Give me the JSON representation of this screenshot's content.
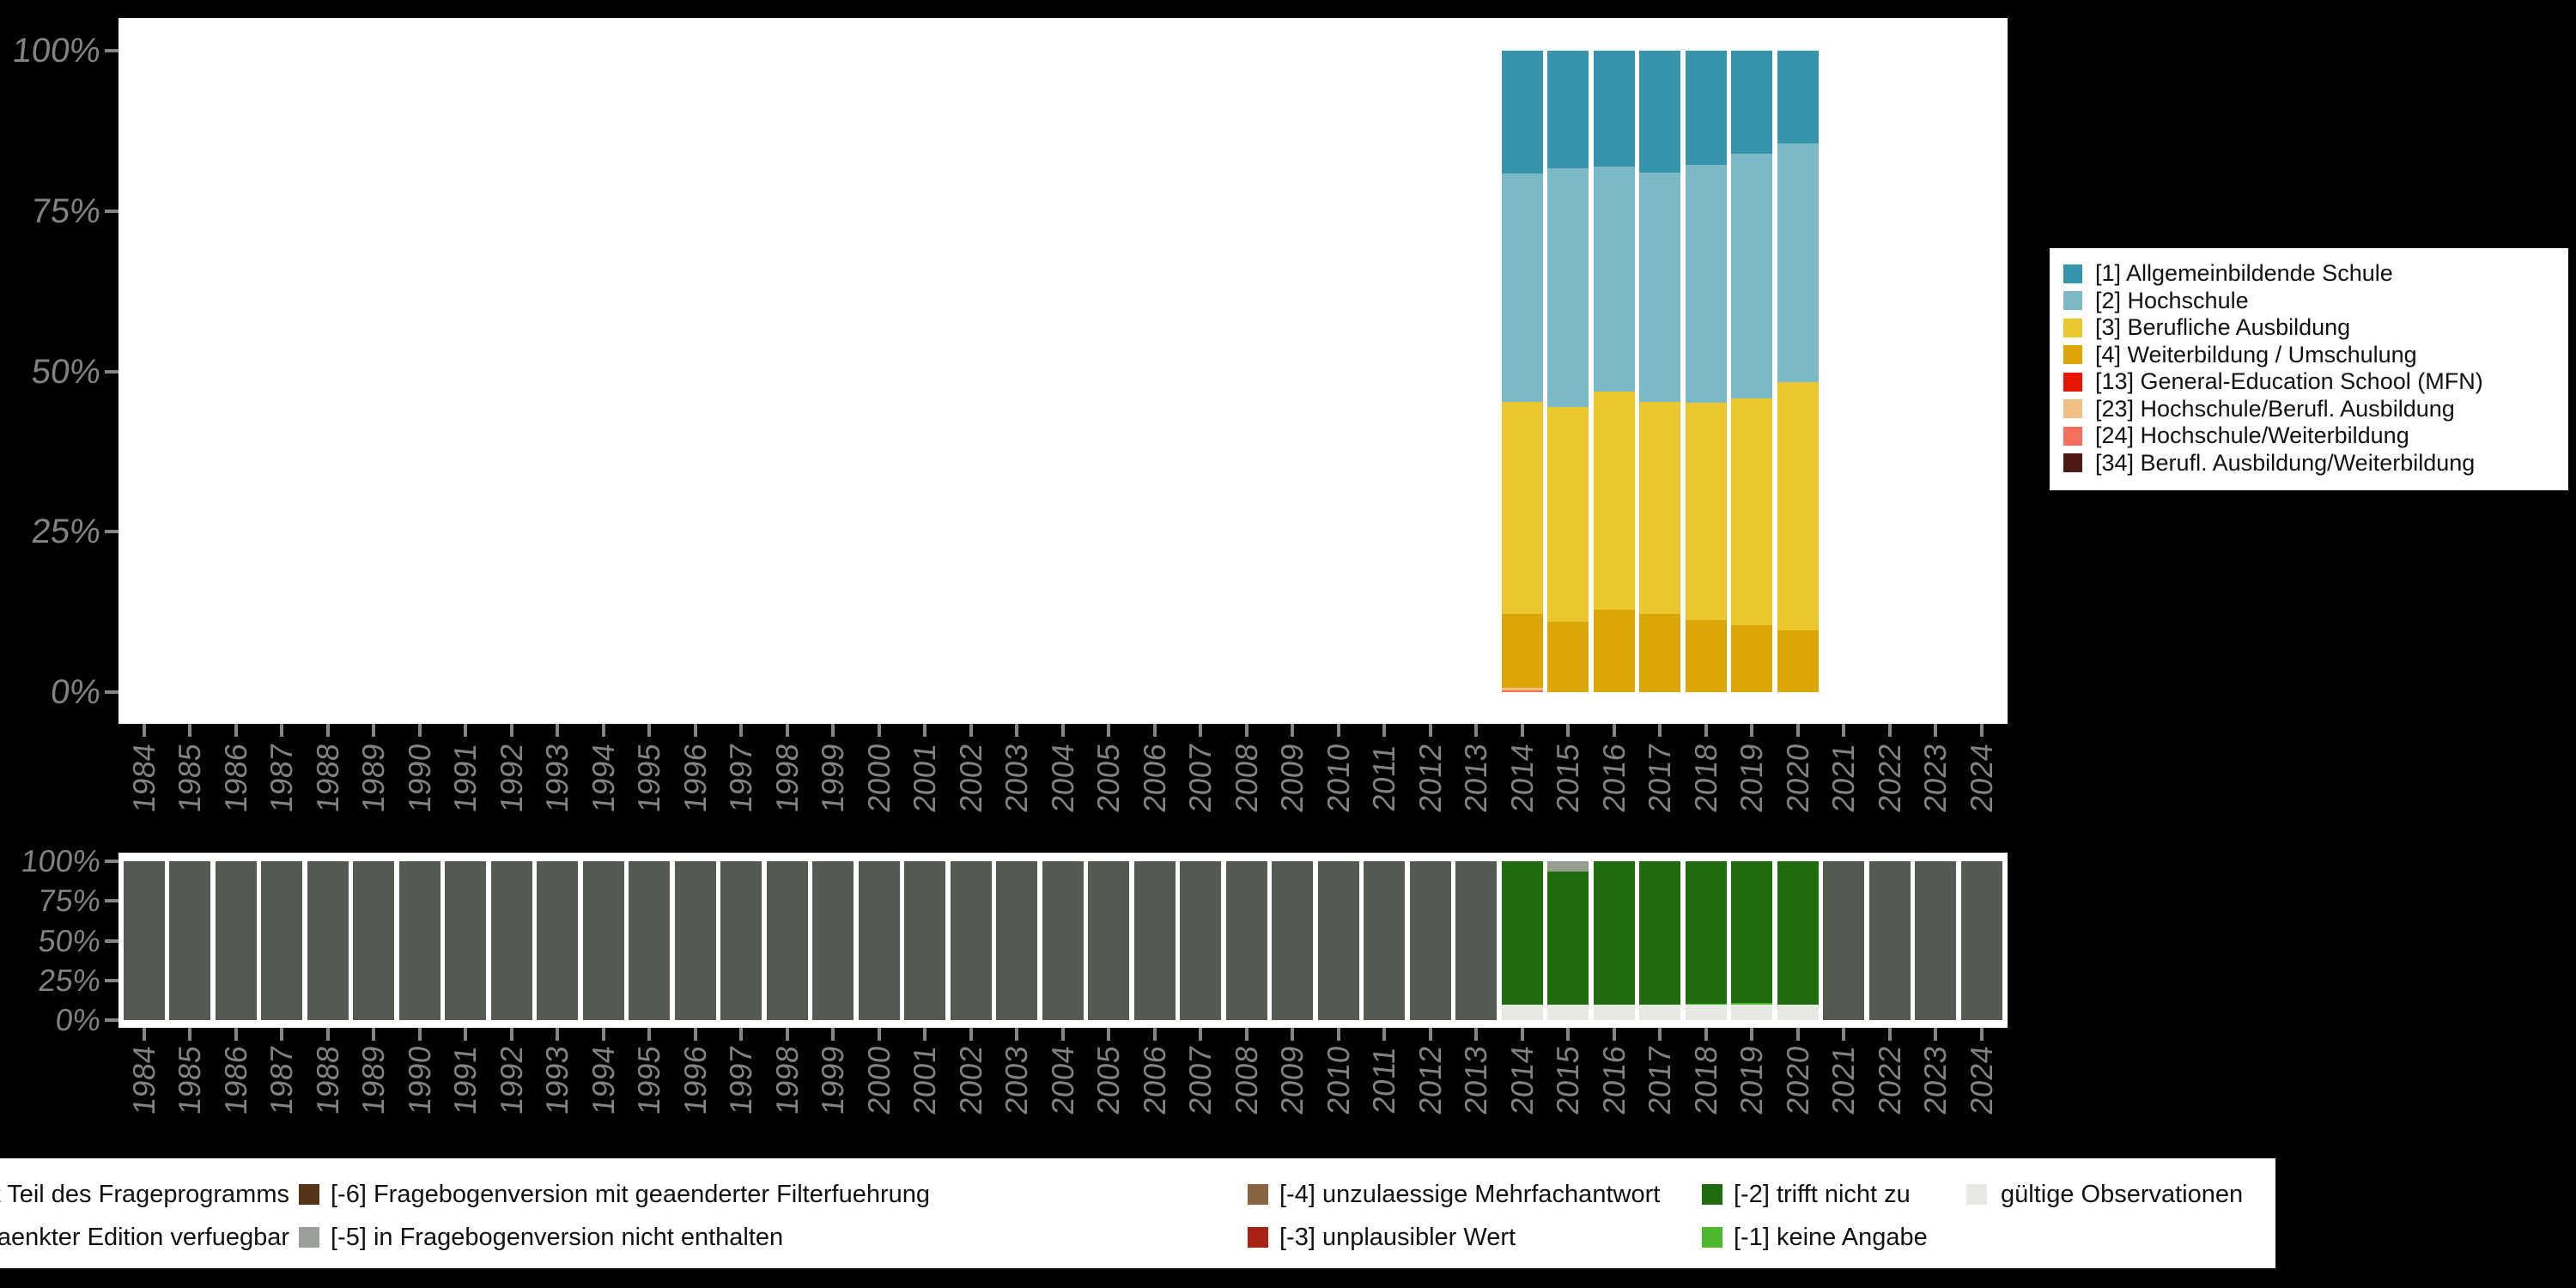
{
  "background_color": "#000000",
  "axis_text_color": "#828282",
  "chart_data": [
    {
      "type": "bar",
      "stacked": true,
      "units": "percent",
      "title": "",
      "xlabel": "",
      "ylabel": "",
      "ylim": [
        0,
        100
      ],
      "yticks": [
        "0%",
        "25%",
        "50%",
        "75%",
        "100%"
      ],
      "grid": false,
      "legend_position": "right",
      "x": [
        1984,
        1985,
        1986,
        1987,
        1988,
        1989,
        1990,
        1991,
        1992,
        1993,
        1994,
        1995,
        1996,
        1997,
        1998,
        1999,
        2000,
        2001,
        2002,
        2003,
        2004,
        2005,
        2006,
        2007,
        2008,
        2009,
        2010,
        2011,
        2012,
        2013,
        2014,
        2015,
        2016,
        2017,
        2018,
        2019,
        2020,
        2021,
        2022,
        2023,
        2024
      ],
      "series": [
        {
          "name": "[1] Allgemeinbildende Schule",
          "color": "#3795ab",
          "values": {
            "2014": 19.2,
            "2015": 18.3,
            "2016": 18.1,
            "2017": 19.0,
            "2018": 17.8,
            "2019": 16.0,
            "2020": 14.5
          }
        },
        {
          "name": "[2] Hochschule",
          "color": "#7cb9c7",
          "values": {
            "2014": 35.5,
            "2015": 37.2,
            "2016": 35.1,
            "2017": 35.7,
            "2018": 37.1,
            "2019": 38.2,
            "2020": 37.2
          }
        },
        {
          "name": "[3] Berufliche Ausbildung",
          "color": "#eac72e",
          "values": {
            "2014": 33.1,
            "2015": 33.5,
            "2016": 34.0,
            "2017": 33.1,
            "2018": 33.8,
            "2019": 35.3,
            "2020": 38.7
          }
        },
        {
          "name": "[4] Weiterbildung / Umschulung",
          "color": "#dca705",
          "values": {
            "2014": 11.5,
            "2015": 11.0,
            "2016": 12.8,
            "2017": 12.2,
            "2018": 11.3,
            "2019": 10.5,
            "2020": 9.6
          }
        },
        {
          "name": "[13] General-Education School (MFN)",
          "color": "#e81505",
          "values": {}
        },
        {
          "name": "[23] Hochschule/Berufl. Ausbildung",
          "color": "#f2c083",
          "values": {
            "2014": 0.4
          }
        },
        {
          "name": "[24] Hochschule/Weiterbildung",
          "color": "#f4705e",
          "values": {
            "2014": 0.3
          }
        },
        {
          "name": "[34] Berufl. Ausbildung/Weiterbildung",
          "color": "#4d1a16",
          "values": {}
        }
      ]
    },
    {
      "type": "bar",
      "stacked": true,
      "units": "percent",
      "title": "",
      "xlabel": "",
      "ylabel": "",
      "ylim": [
        0,
        100
      ],
      "yticks": [
        "0%",
        "25%",
        "50%",
        "75%",
        "100%"
      ],
      "grid": false,
      "legend_position": "bottom",
      "x": [
        1984,
        1985,
        1986,
        1987,
        1988,
        1989,
        1990,
        1991,
        1992,
        1993,
        1994,
        1995,
        1996,
        1997,
        1998,
        1999,
        2000,
        2001,
        2002,
        2003,
        2004,
        2005,
        2006,
        2007,
        2008,
        2009,
        2010,
        2011,
        2012,
        2013,
        2014,
        2015,
        2016,
        2017,
        2018,
        2019,
        2020,
        2021,
        2022,
        2023,
        2024
      ],
      "series": [
        {
          "name": "Frage in diesem Jahr nicht Teil des Frageprogramms",
          "color": "#545a52",
          "values": {
            "1984": 100,
            "1985": 100,
            "1986": 100,
            "1987": 100,
            "1988": 100,
            "1989": 100,
            "1990": 100,
            "1991": 100,
            "1992": 100,
            "1993": 100,
            "1994": 100,
            "1995": 100,
            "1996": 100,
            "1997": 100,
            "1998": 100,
            "1999": 100,
            "2000": 100,
            "2001": 100,
            "2002": 100,
            "2003": 100,
            "2004": 100,
            "2005": 100,
            "2006": 100,
            "2007": 100,
            "2008": 100,
            "2009": 100,
            "2010": 100,
            "2011": 100,
            "2012": 100,
            "2013": 100,
            "2021": 100,
            "2022": 100,
            "2023": 100,
            "2024": 100
          }
        },
        {
          "name": "[-5] in Fragebogenversion nicht enthalten",
          "color": "#979c93",
          "values": {
            "2015": 6.3
          }
        },
        {
          "name": "[-2] trifft nicht zu",
          "color": "#206b10",
          "values": {
            "2014": 90.3,
            "2015": 83.9,
            "2016": 90.3,
            "2017": 90.3,
            "2018": 89.7,
            "2019": 89.3,
            "2020": 90.3
          }
        },
        {
          "name": "[-1] keine Angabe",
          "color": "#4cb72c",
          "values": {
            "2018": 0.6,
            "2019": 1.0
          }
        },
        {
          "name": "gültige Observationen",
          "color": "#e5e9e1",
          "values": {
            "2014": 9.7,
            "2015": 9.8,
            "2016": 9.7,
            "2017": 9.7,
            "2018": 9.7,
            "2019": 9.7,
            "2020": 9.7
          }
        }
      ]
    }
  ],
  "right_legend": {
    "items": [
      {
        "label": "[1] Allgemeinbildende Schule",
        "color": "#3795ab"
      },
      {
        "label": "[2] Hochschule",
        "color": "#7cb9c7"
      },
      {
        "label": "[3] Berufliche Ausbildung",
        "color": "#eac72e"
      },
      {
        "label": "[4] Weiterbildung / Umschulung",
        "color": "#dca705"
      },
      {
        "label": "[13] General-Education School (MFN)",
        "color": "#e81505"
      },
      {
        "label": "[23] Hochschule/Berufl. Ausbildung",
        "color": "#f2c083"
      },
      {
        "label": "[24] Hochschule/Weiterbildung",
        "color": "#f4705e"
      },
      {
        "label": "[34] Berufl. Ausbildung/Weiterbildung",
        "color": "#4d1a16"
      }
    ]
  },
  "bottom_legend": {
    "rows": [
      {
        "items": [
          {
            "label": "ge in diesem Jahr nicht Teil des Frageprogramms",
            "color": null,
            "clipped": true
          },
          {
            "label": "[-6] Fragebogenversion mit geaenderter Filterfuehrung",
            "color": "#55341a"
          },
          {
            "label": "[-4] unzulaessige Mehrfachantwort",
            "color": "#8a6340"
          },
          {
            "label": "[-2] trifft nicht zu",
            "color": "#206b10"
          },
          {
            "label": "gültige Observationen",
            "color": "#e5e9e1"
          }
        ]
      },
      {
        "items": [
          {
            "label": "r in weniger eingeschraenkter Edition verfuegbar",
            "color": null,
            "clipped": true
          },
          {
            "label": "[-5] in Fragebogenversion nicht enthalten",
            "color": "#9ba09a"
          },
          {
            "label": "[-3] unplausibler Wert",
            "color": "#aa2116"
          },
          {
            "label": "[-1] keine Angabe",
            "color": "#4cb72c"
          }
        ]
      }
    ]
  }
}
